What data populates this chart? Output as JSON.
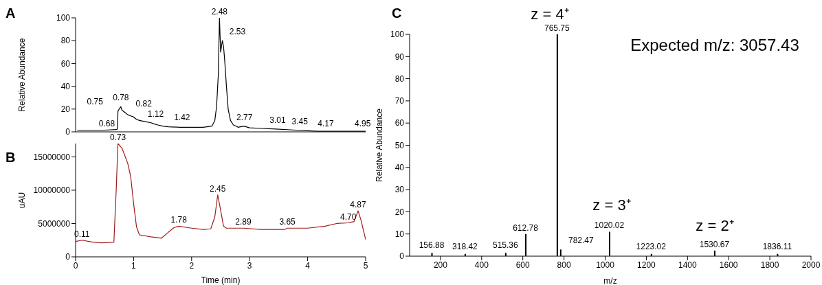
{
  "chart_data": [
    {
      "type": "line",
      "title": "A",
      "ylabel": "Relative Abundance",
      "xlim": [
        0,
        5
      ],
      "ylim": [
        0,
        100
      ],
      "yticks": [
        0,
        20,
        40,
        60,
        80,
        100
      ],
      "tick_labels": "y",
      "color": "#000000",
      "x": [
        0.03,
        0.5,
        0.7,
        0.72,
        0.73,
        0.75,
        0.78,
        0.8,
        0.85,
        0.9,
        0.95,
        1.0,
        1.05,
        1.1,
        1.2,
        1.3,
        1.35,
        1.42,
        1.5,
        1.6,
        1.8,
        2.0,
        2.2,
        2.35,
        2.4,
        2.43,
        2.46,
        2.48,
        2.5,
        2.53,
        2.55,
        2.57,
        2.6,
        2.63,
        2.67,
        2.72,
        2.77,
        2.8,
        2.9,
        3.0,
        3.2,
        3.45,
        3.8,
        4.0,
        4.17,
        4.4,
        4.6,
        4.95,
        5.0
      ],
      "values": [
        1.5,
        1.5,
        2,
        2.5,
        18,
        20,
        22,
        19,
        17,
        15,
        14,
        13,
        11,
        10,
        9,
        8,
        7,
        6,
        5,
        4.5,
        4,
        4,
        4,
        5,
        10,
        22,
        50,
        100,
        70,
        80,
        75,
        63,
        40,
        20,
        10,
        6,
        5,
        4,
        5,
        3.5,
        3,
        2.5,
        1.5,
        1,
        0.5,
        0.5,
        0.5,
        0.5,
        0.5
      ],
      "annotations": [
        {
          "text": "0.68",
          "x": 0.68,
          "y": 2
        },
        {
          "text": "0.75",
          "x": 0.75,
          "y": 20
        },
        {
          "text": "0.78",
          "x": 0.78,
          "y": 22
        },
        {
          "text": "0.82",
          "x": 0.82,
          "y": 18
        },
        {
          "text": "1.12",
          "x": 1.12,
          "y": 10
        },
        {
          "text": "1.42",
          "x": 1.42,
          "y": 6
        },
        {
          "text": "2.48",
          "x": 2.48,
          "y": 100
        },
        {
          "text": "2.53",
          "x": 2.53,
          "y": 80
        },
        {
          "text": "2.77",
          "x": 2.77,
          "y": 5
        },
        {
          "text": "3.01",
          "x": 3.01,
          "y": 3.5
        },
        {
          "text": "3.45",
          "x": 3.45,
          "y": 2.5
        },
        {
          "text": "4.17",
          "x": 4.17,
          "y": 0.5
        },
        {
          "text": "4.95",
          "x": 4.95,
          "y": 0.5
        }
      ]
    },
    {
      "type": "line",
      "title": "B",
      "xlabel": "Time (min)",
      "ylabel": "uAU",
      "xlim": [
        0,
        5
      ],
      "xticks": [
        0,
        1,
        2,
        3,
        4,
        5
      ],
      "ylim": [
        0,
        17000000
      ],
      "yticks": [
        0,
        5000000,
        10000000,
        15000000
      ],
      "color": "#a01c1c",
      "x": [
        0,
        0.11,
        0.3,
        0.45,
        0.66,
        0.7,
        0.73,
        0.8,
        0.9,
        0.95,
        1.0,
        1.05,
        1.1,
        1.3,
        1.48,
        1.6,
        1.7,
        1.78,
        2.0,
        2.2,
        2.33,
        2.4,
        2.45,
        2.5,
        2.55,
        2.6,
        2.89,
        3.2,
        3.6,
        3.65,
        4.0,
        4.3,
        4.5,
        4.7,
        4.8,
        4.87,
        4.92,
        5.0
      ],
      "values": [
        2300000,
        2500000,
        2200000,
        2100000,
        2200000,
        10000000,
        17000000,
        16300000,
        14000000,
        12000000,
        8000000,
        4500000,
        3300000,
        3000000,
        2800000,
        3700000,
        4400000,
        4600000,
        4300000,
        4100000,
        4200000,
        6000000,
        9300000,
        7000000,
        4600000,
        4300000,
        4300000,
        4100000,
        4100000,
        4300000,
        4300000,
        4600000,
        5000000,
        5100000,
        5300000,
        6900000,
        5500000,
        2600000
      ],
      "annotations": [
        {
          "text": "0.11",
          "x": 0.11,
          "y": 2500000
        },
        {
          "text": "0.73",
          "x": 0.73,
          "y": 17000000
        },
        {
          "text": "1.78",
          "x": 1.78,
          "y": 4600000
        },
        {
          "text": "2.45",
          "x": 2.45,
          "y": 9300000
        },
        {
          "text": "2.89",
          "x": 2.89,
          "y": 4300000
        },
        {
          "text": "3.65",
          "x": 3.65,
          "y": 4300000
        },
        {
          "text": "4.70",
          "x": 4.7,
          "y": 5100000
        },
        {
          "text": "4.87",
          "x": 4.87,
          "y": 6900000
        }
      ]
    },
    {
      "type": "bar",
      "title": "C",
      "xlabel": "m/z",
      "ylabel": "Relative Abundance",
      "xlim": [
        50,
        2000
      ],
      "xticks": [
        200,
        400,
        600,
        800,
        1000,
        1200,
        1400,
        1600,
        1800,
        2000
      ],
      "ylim": [
        0,
        100
      ],
      "yticks": [
        0,
        10,
        20,
        30,
        40,
        50,
        60,
        70,
        80,
        90,
        100
      ],
      "color": "#000000",
      "x": [
        156.88,
        318.42,
        515.36,
        612.78,
        765.75,
        782.47,
        1020.02,
        1223.02,
        1530.67,
        1836.11
      ],
      "values": [
        1.5,
        1,
        1.5,
        10,
        100,
        3,
        11,
        1,
        2.5,
        1
      ],
      "annotations": [
        "z = 4⁺",
        "Expected m/z: 3057.43",
        "z = 3⁺",
        "z = 2⁺",
        {
          "text": "156.88",
          "x": 156.88,
          "y": 1.5
        },
        {
          "text": "318.42",
          "x": 318.42,
          "y": 1
        },
        {
          "text": "515.36",
          "x": 515.36,
          "y": 1.5
        },
        {
          "text": "612.78",
          "x": 612.78,
          "y": 10
        },
        {
          "text": "765.75",
          "x": 765.75,
          "y": 100
        },
        {
          "text": "782.47",
          "x": 782.47,
          "y": 3
        },
        {
          "text": "1020.02",
          "x": 1020.02,
          "y": 11
        },
        {
          "text": "1223.02",
          "x": 1223.02,
          "y": 1
        },
        {
          "text": "1530.67",
          "x": 1530.67,
          "y": 2.5
        },
        {
          "text": "1836.11",
          "x": 1836.11,
          "y": 1
        }
      ]
    }
  ]
}
